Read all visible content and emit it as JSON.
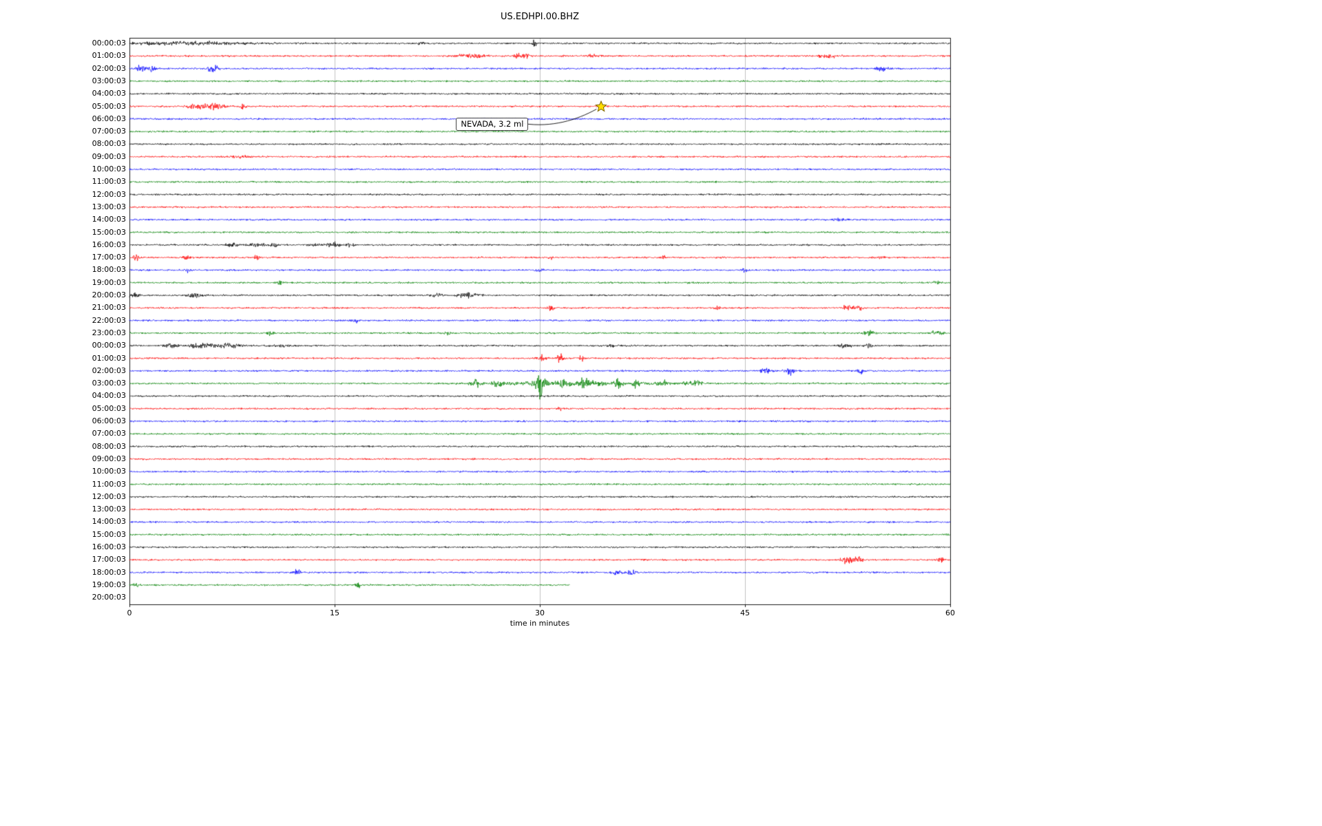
{
  "window": {
    "title": "US.EDHPI.00.BHZ"
  },
  "chart_data": {
    "type": "line",
    "subtype": "helicorder-seismogram",
    "title": "US.EDHPI.00.BHZ",
    "xlabel": "time in minutes",
    "xlim": [
      0,
      60
    ],
    "xticks": [
      0,
      15,
      30,
      45,
      60
    ],
    "grid": "vertical gridlines at 15, 30, 45",
    "trace_colors_cycle": [
      "#000000",
      "#ff0000",
      "#0000ff",
      "#008000"
    ],
    "annotation": {
      "text": "NEVADA, 3.2 ml",
      "row_label": "05:00:03",
      "time_minutes": 34.5,
      "marker": "yellow-star",
      "marker_color": "#ffdd00"
    },
    "rows": [
      {
        "label": "00:00:03",
        "color": "#000000",
        "events": [
          [
            4,
            1.8,
            9
          ],
          [
            21.3,
            3,
            0.35
          ],
          [
            29.6,
            4,
            0.35
          ]
        ]
      },
      {
        "label": "01:00:03",
        "color": "#ff0000",
        "events": [
          [
            25,
            2,
            2.5
          ],
          [
            28.4,
            4.5,
            0.5
          ],
          [
            29,
            3.5,
            0.6
          ],
          [
            34,
            1.5,
            1
          ],
          [
            51,
            2,
            1.5
          ]
        ]
      },
      {
        "label": "02:00:03",
        "color": "#0000ff",
        "events": [
          [
            0.9,
            4.5,
            0.7
          ],
          [
            1.6,
            5.5,
            0.5
          ],
          [
            6.1,
            5.5,
            0.7
          ],
          [
            55,
            4.5,
            0.7
          ]
        ]
      },
      {
        "label": "03:00:03",
        "color": "#008000",
        "events": []
      },
      {
        "label": "04:00:03",
        "color": "#000000",
        "events": []
      },
      {
        "label": "05:00:03",
        "color": "#ff0000",
        "events": [
          [
            4.8,
            3.5,
            1
          ],
          [
            6.2,
            4,
            1.6
          ],
          [
            8.3,
            3,
            0.5
          ],
          [
            34.5,
            1.8,
            0.6
          ]
        ]
      },
      {
        "label": "06:00:03",
        "color": "#0000ff",
        "events": []
      },
      {
        "label": "07:00:03",
        "color": "#008000",
        "events": []
      },
      {
        "label": "08:00:03",
        "color": "#000000",
        "events": []
      },
      {
        "label": "09:00:03",
        "color": "#ff0000",
        "events": [
          [
            8,
            1.2,
            2
          ]
        ]
      },
      {
        "label": "10:00:03",
        "color": "#0000ff",
        "events": []
      },
      {
        "label": "11:00:03",
        "color": "#008000",
        "events": []
      },
      {
        "label": "12:00:03",
        "color": "#000000",
        "events": []
      },
      {
        "label": "13:00:03",
        "color": "#ff0000",
        "events": []
      },
      {
        "label": "14:00:03",
        "color": "#0000ff",
        "events": [
          [
            52,
            1.5,
            1
          ]
        ]
      },
      {
        "label": "15:00:03",
        "color": "#008000",
        "events": []
      },
      {
        "label": "16:00:03",
        "color": "#000000",
        "events": [
          [
            7.5,
            3.5,
            0.8
          ],
          [
            9.2,
            2.5,
            1.5
          ],
          [
            10.6,
            3,
            0.6
          ],
          [
            13.6,
            2.5,
            0.7
          ],
          [
            14.9,
            3,
            0.8
          ],
          [
            16.1,
            2.5,
            0.5
          ]
        ]
      },
      {
        "label": "17:00:03",
        "color": "#ff0000",
        "events": [
          [
            0.5,
            3.5,
            0.4
          ],
          [
            4.2,
            3.5,
            0.5
          ],
          [
            9.3,
            3.5,
            0.4
          ],
          [
            30.8,
            3,
            0.4
          ],
          [
            39,
            3,
            0.4
          ],
          [
            55,
            1.5,
            0.6
          ]
        ]
      },
      {
        "label": "18:00:03",
        "color": "#0000ff",
        "events": [
          [
            4.2,
            2.5,
            0.4
          ],
          [
            30,
            3,
            0.5
          ],
          [
            45,
            2.5,
            0.4
          ]
        ]
      },
      {
        "label": "19:00:03",
        "color": "#008000",
        "events": [
          [
            11,
            2.5,
            0.4
          ],
          [
            59,
            2,
            0.4
          ]
        ]
      },
      {
        "label": "20:00:03",
        "color": "#000000",
        "events": [
          [
            0.3,
            5,
            0.7
          ],
          [
            4.8,
            3.5,
            1
          ],
          [
            22.5,
            2.5,
            0.8
          ],
          [
            24.6,
            3.5,
            1
          ],
          [
            25.4,
            2.5,
            0.5
          ]
        ]
      },
      {
        "label": "21:00:03",
        "color": "#ff0000",
        "events": [
          [
            30.8,
            3,
            0.5
          ],
          [
            43,
            2.5,
            0.5
          ],
          [
            52.6,
            3.5,
            0.9
          ],
          [
            53.4,
            3,
            0.5
          ]
        ]
      },
      {
        "label": "22:00:03",
        "color": "#0000ff",
        "events": [
          [
            16.5,
            3.5,
            0.5
          ]
        ]
      },
      {
        "label": "23:00:03",
        "color": "#008000",
        "events": [
          [
            10.3,
            3.5,
            0.5
          ],
          [
            23.2,
            3,
            0.4
          ],
          [
            54,
            3.5,
            0.8
          ],
          [
            59,
            2.5,
            1
          ]
        ]
      },
      {
        "label": "00:00:03",
        "color": "#000000",
        "events": [
          [
            3,
            2.5,
            1
          ],
          [
            5.2,
            3,
            1.8
          ],
          [
            7.2,
            3,
            1.8
          ],
          [
            11,
            2,
            1
          ],
          [
            35.2,
            2.5,
            0.5
          ],
          [
            52.3,
            3,
            0.8
          ],
          [
            54,
            2.5,
            0.5
          ]
        ]
      },
      {
        "label": "01:00:03",
        "color": "#ff0000",
        "events": [
          [
            30.2,
            4.5,
            0.6
          ],
          [
            31.5,
            5.5,
            0.5
          ],
          [
            33,
            4.5,
            0.4
          ]
        ]
      },
      {
        "label": "02:00:03",
        "color": "#0000ff",
        "events": [
          [
            46.5,
            4.5,
            0.6
          ],
          [
            48.3,
            4.5,
            0.8
          ],
          [
            53.5,
            3.5,
            0.5
          ]
        ]
      },
      {
        "label": "03:00:03",
        "color": "#008000",
        "events": [
          [
            25.3,
            4.5,
            0.8
          ],
          [
            27,
            3.5,
            0.7
          ],
          [
            30,
            15,
            0.8
          ],
          [
            31.8,
            7,
            0.6
          ],
          [
            33.3,
            8,
            0.7
          ],
          [
            33,
            2,
            13
          ],
          [
            35.7,
            6,
            0.5
          ],
          [
            37,
            4.5,
            0.5
          ],
          [
            39,
            3.5,
            0.6
          ],
          [
            41.2,
            4.5,
            1.2
          ]
        ]
      },
      {
        "label": "04:00:03",
        "color": "#000000",
        "events": []
      },
      {
        "label": "05:00:03",
        "color": "#ff0000",
        "events": [
          [
            31.5,
            3.5,
            0.4
          ]
        ]
      },
      {
        "label": "06:00:03",
        "color": "#0000ff",
        "events": []
      },
      {
        "label": "07:00:03",
        "color": "#008000",
        "events": []
      },
      {
        "label": "08:00:03",
        "color": "#000000",
        "events": []
      },
      {
        "label": "09:00:03",
        "color": "#ff0000",
        "events": []
      },
      {
        "label": "10:00:03",
        "color": "#0000ff",
        "events": []
      },
      {
        "label": "11:00:03",
        "color": "#008000",
        "events": []
      },
      {
        "label": "12:00:03",
        "color": "#000000",
        "events": []
      },
      {
        "label": "13:00:03",
        "color": "#ff0000",
        "events": []
      },
      {
        "label": "14:00:03",
        "color": "#0000ff",
        "events": []
      },
      {
        "label": "15:00:03",
        "color": "#008000",
        "events": []
      },
      {
        "label": "16:00:03",
        "color": "#000000",
        "events": []
      },
      {
        "label": "17:00:03",
        "color": "#ff0000",
        "events": [
          [
            52.5,
            4.5,
            0.9
          ],
          [
            53.3,
            3.5,
            0.6
          ],
          [
            59.3,
            3.5,
            0.4
          ]
        ]
      },
      {
        "label": "18:00:03",
        "color": "#0000ff",
        "events": [
          [
            12.3,
            4.5,
            0.5
          ],
          [
            35.6,
            3.5,
            0.7
          ],
          [
            36.7,
            4.5,
            0.5
          ]
        ]
      },
      {
        "label": "19:00:03",
        "color": "#008000",
        "end_minutes": 32.2,
        "events": [
          [
            0.5,
            3.5,
            0.5
          ],
          [
            16.7,
            4.5,
            0.4
          ]
        ]
      },
      {
        "label": "20:00:03",
        "color": "#000000",
        "end_minutes": 0,
        "events": []
      }
    ]
  }
}
